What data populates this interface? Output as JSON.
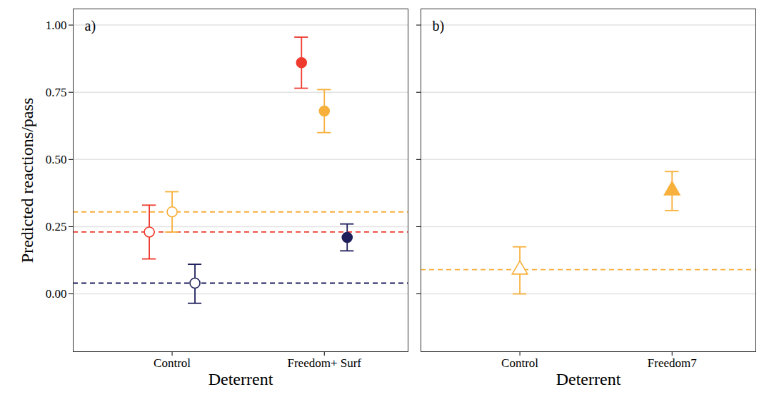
{
  "chart_data": [
    {
      "type": "scatter",
      "title": "a)",
      "x_label": "Deterrent",
      "y_label": "Predicted reactions/pass",
      "categories": [
        "Control",
        "Freedom+ Surf"
      ],
      "series": [
        {
          "color": "#ee3b2e",
          "values": [
            0.23,
            0.86
          ],
          "error_low": [
            0.13,
            0.765
          ],
          "error_high": [
            0.33,
            0.955
          ],
          "marker": [
            "open circle",
            "circle"
          ],
          "reference_line": 0.23,
          "line_style": "dashed"
        },
        {
          "color": "#f7b03c",
          "values": [
            0.305,
            0.68
          ],
          "error_low": [
            0.23,
            0.6
          ],
          "error_high": [
            0.38,
            0.76
          ],
          "marker": [
            "open circle",
            "circle"
          ],
          "reference_line": 0.305,
          "line_style": "dashed"
        },
        {
          "color": "#1f1f5c",
          "values": [
            0.04,
            0.21
          ],
          "error_low": [
            -0.035,
            0.16
          ],
          "error_high": [
            0.11,
            0.26
          ],
          "marker": [
            "open circle",
            "circle"
          ],
          "reference_line": 0.04,
          "line_style": "dashed"
        }
      ],
      "ylim": [
        -0.215,
        1.06
      ],
      "yticks": [
        {
          "value": 0,
          "label": "0.00"
        },
        {
          "value": 0.25,
          "label": "0.25"
        },
        {
          "value": 0.5,
          "label": "0.50"
        },
        {
          "value": 0.75,
          "label": "0.75"
        },
        {
          "value": 1,
          "label": "1.00"
        }
      ],
      "grid": true
    },
    {
      "type": "scatter",
      "title": "b)",
      "x_label": "Deterrent",
      "categories": [
        "Control",
        "Freedom7"
      ],
      "series": [
        {
          "color": "#f7b03c",
          "values": [
            0.09,
            0.385
          ],
          "error_low": [
            0.0,
            0.31
          ],
          "error_high": [
            0.175,
            0.455
          ],
          "marker": [
            "open triangle",
            "triangle"
          ],
          "reference_line": 0.09,
          "line_style": "dashed"
        }
      ],
      "ylim": [
        -0.215,
        1.06
      ],
      "yticks": [
        {
          "value": 0,
          "label": "0.00"
        },
        {
          "value": 0.25,
          "label": "0.25"
        },
        {
          "value": 0.5,
          "label": "0.50"
        },
        {
          "value": 0.75,
          "label": "0.75"
        },
        {
          "value": 1,
          "label": "1.00"
        }
      ],
      "grid": true,
      "tick_labels": "x"
    }
  ]
}
